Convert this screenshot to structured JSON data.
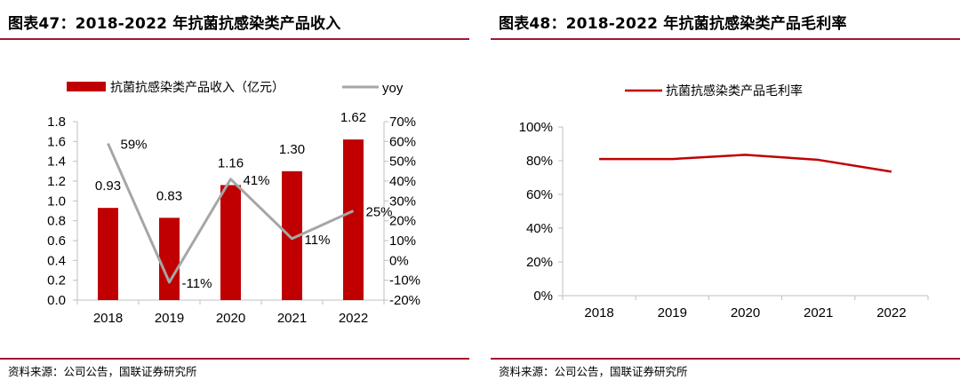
{
  "page": {
    "panels": [
      {
        "title": "图表47：2018-2022 年抗菌抗感染类产品收入",
        "source": "资料来源：公司公告，国联证券研究所"
      },
      {
        "title": "图表48：2018-2022 年抗菌抗感染类产品毛利率",
        "source": "资料来源：公司公告，国联证券研究所"
      }
    ]
  },
  "colors": {
    "bar": "#c00000",
    "line_gray": "#a6a6a6",
    "line_red": "#c00000",
    "rule": "#a3162e",
    "axis": "#bfbfbf"
  },
  "chart_data": [
    {
      "type": "bar+line",
      "title": "2018-2022 年抗菌抗感染类产品收入",
      "categories": [
        "2018",
        "2019",
        "2020",
        "2021",
        "2022"
      ],
      "series": [
        {
          "name": "抗菌抗感染类产品收入（亿元）",
          "type": "bar",
          "axis": "left",
          "values": [
            0.93,
            0.83,
            1.16,
            1.3,
            1.62
          ],
          "labels": [
            "0.93",
            "0.83",
            "1.16",
            "1.30",
            "1.62"
          ]
        },
        {
          "name": "yoy",
          "type": "line",
          "axis": "right",
          "values": [
            59,
            -11,
            41,
            11,
            25
          ],
          "labels": [
            "59%",
            "-11%",
            "41%",
            "11%",
            "25%"
          ]
        }
      ],
      "left_axis": {
        "min": 0,
        "max": 1.8,
        "step": 0.2,
        "ticks": [
          "0.0",
          "0.2",
          "0.4",
          "0.6",
          "0.8",
          "1.0",
          "1.2",
          "1.4",
          "1.6",
          "1.8"
        ]
      },
      "right_axis": {
        "min": -20,
        "max": 70,
        "step": 10,
        "ticks": [
          "-20%",
          "-10%",
          "0%",
          "10%",
          "20%",
          "30%",
          "40%",
          "50%",
          "60%",
          "70%"
        ]
      },
      "legend_position": "top"
    },
    {
      "type": "line",
      "title": "2018-2022 年抗菌抗感染类产品毛利率",
      "categories": [
        "2018",
        "2019",
        "2020",
        "2021",
        "2022"
      ],
      "series": [
        {
          "name": "抗菌抗感染类产品毛利率",
          "values": [
            81,
            81,
            83.5,
            80.5,
            73.5
          ]
        }
      ],
      "y_axis": {
        "min": 0,
        "max": 100,
        "step": 20,
        "ticks": [
          "0%",
          "20%",
          "40%",
          "60%",
          "80%",
          "100%"
        ]
      },
      "legend_position": "top"
    }
  ]
}
